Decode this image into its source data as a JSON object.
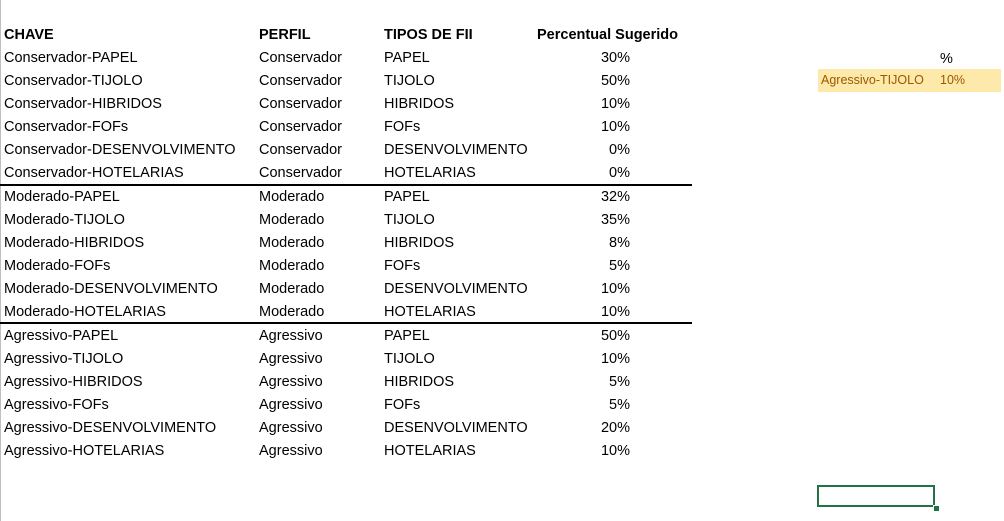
{
  "headers": {
    "chave": "CHAVE",
    "perfil": "PERFIL",
    "tipos": "TIPOS DE FII",
    "percentual": "Percentual Sugerido"
  },
  "rows": [
    {
      "chave": "Conservador-PAPEL",
      "perfil": "Conservador",
      "tipo": "PAPEL",
      "pct": "30%"
    },
    {
      "chave": "Conservador-TIJOLO",
      "perfil": "Conservador",
      "tipo": "TIJOLO",
      "pct": "50%"
    },
    {
      "chave": "Conservador-HIBRIDOS",
      "perfil": "Conservador",
      "tipo": "HIBRIDOS",
      "pct": "10%"
    },
    {
      "chave": "Conservador-FOFs",
      "perfil": "Conservador",
      "tipo": "FOFs",
      "pct": "10%"
    },
    {
      "chave": "Conservador-DESENVOLVIMENTO",
      "perfil": "Conservador",
      "tipo": "DESENVOLVIMENTO",
      "pct": "0%"
    },
    {
      "chave": "Conservador-HOTELARIAS",
      "perfil": "Conservador",
      "tipo": "HOTELARIAS",
      "pct": "0%"
    },
    {
      "chave": "Moderado-PAPEL",
      "perfil": "Moderado",
      "tipo": "PAPEL",
      "pct": "32%"
    },
    {
      "chave": "Moderado-TIJOLO",
      "perfil": "Moderado",
      "tipo": "TIJOLO",
      "pct": "35%"
    },
    {
      "chave": "Moderado-HIBRIDOS",
      "perfil": "Moderado",
      "tipo": "HIBRIDOS",
      "pct": "8%"
    },
    {
      "chave": "Moderado-FOFs",
      "perfil": "Moderado",
      "tipo": "FOFs",
      "pct": "5%"
    },
    {
      "chave": "Moderado-DESENVOLVIMENTO",
      "perfil": "Moderado",
      "tipo": "DESENVOLVIMENTO",
      "pct": "10%"
    },
    {
      "chave": "Moderado-HOTELARIAS",
      "perfil": "Moderado",
      "tipo": "HOTELARIAS",
      "pct": "10%"
    },
    {
      "chave": "Agressivo-PAPEL",
      "perfil": "Agressivo",
      "tipo": "PAPEL",
      "pct": "50%"
    },
    {
      "chave": "Agressivo-TIJOLO",
      "perfil": "Agressivo",
      "tipo": "TIJOLO",
      "pct": "10%"
    },
    {
      "chave": "Agressivo-HIBRIDOS",
      "perfil": "Agressivo",
      "tipo": "HIBRIDOS",
      "pct": "5%"
    },
    {
      "chave": "Agressivo-FOFs",
      "perfil": "Agressivo",
      "tipo": "FOFs",
      "pct": "5%"
    },
    {
      "chave": "Agressivo-DESENVOLVIMENTO",
      "perfil": "Agressivo",
      "tipo": "DESENVOLVIMENTO",
      "pct": "20%"
    },
    {
      "chave": "Agressivo-HOTELARIAS",
      "perfil": "Agressivo",
      "tipo": "HOTELARIAS",
      "pct": "10%"
    }
  ],
  "lookup": {
    "header": "%",
    "key": "Agressivo-TIJOLO",
    "value": "10%"
  },
  "colors": {
    "highlight_fill": "#fde9a9",
    "highlight_text": "#9c5700",
    "selection": "#217346"
  }
}
